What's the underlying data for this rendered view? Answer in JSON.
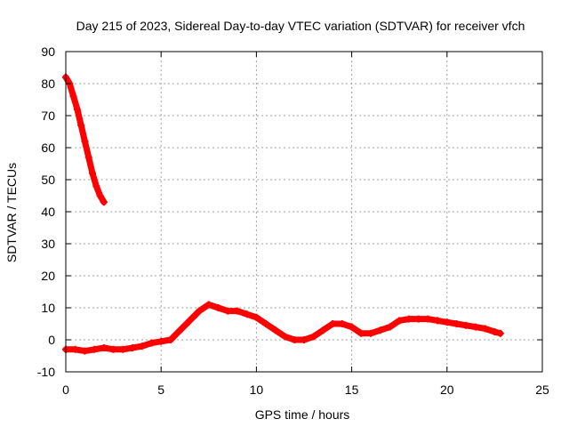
{
  "chart_data": {
    "type": "scatter",
    "title": "Day 215 of 2023, Sidereal Day-to-day VTEC variation (SDTVAR) for receiver vfch",
    "xlabel": "GPS time / hours",
    "ylabel": "SDTVAR / TECUs",
    "xlim": [
      0,
      25
    ],
    "ylim": [
      -10,
      90
    ],
    "xticks": [
      0,
      5,
      10,
      15,
      20,
      25
    ],
    "yticks": [
      -10,
      0,
      10,
      20,
      30,
      40,
      50,
      60,
      70,
      80,
      90
    ],
    "grid": true,
    "series_color": "#ff0000",
    "series": [
      {
        "name": "segment-1",
        "x": [
          0.0,
          0.2,
          0.4,
          0.6,
          0.8,
          1.0,
          1.2,
          1.4,
          1.6,
          1.8,
          2.0
        ],
        "y": [
          82,
          80,
          76,
          72,
          67,
          62,
          57,
          52,
          48,
          45,
          43
        ]
      },
      {
        "name": "segment-2",
        "x": [
          0.0,
          0.5,
          1.0,
          1.5,
          2.0,
          2.5,
          3.0,
          3.5,
          4.0,
          4.5,
          5.0,
          5.5,
          6.0,
          6.5,
          7.0,
          7.5,
          8.0,
          8.5,
          9.0,
          9.5,
          10.0,
          10.5,
          11.0,
          11.5,
          12.0,
          12.5,
          13.0,
          13.5,
          14.0,
          14.5,
          15.0,
          15.5,
          16.0,
          16.5,
          17.0,
          17.5,
          18.0,
          18.5,
          19.0,
          19.5,
          20.0,
          20.5,
          21.0,
          21.5,
          22.0,
          22.5,
          22.8
        ],
        "y": [
          -3,
          -3,
          -3.5,
          -3,
          -2.5,
          -3,
          -3,
          -2.5,
          -2,
          -1,
          -0.5,
          0,
          3,
          6,
          9,
          11,
          10,
          9,
          9,
          8,
          7,
          5,
          3,
          1,
          0,
          0,
          1,
          3,
          5,
          5,
          4,
          2,
          2,
          3,
          4,
          6,
          6.5,
          6.5,
          6.5,
          6,
          5.5,
          5,
          4.5,
          4,
          3.5,
          2.5,
          2
        ]
      }
    ]
  }
}
